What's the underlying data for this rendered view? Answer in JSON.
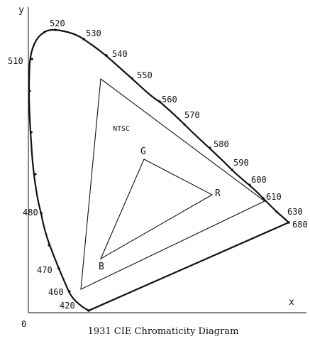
{
  "diagram": {
    "caption": "1931 CIE Chromaticity Diagram",
    "axes": {
      "x_label": "x",
      "y_label": "y",
      "origin_label": "0"
    },
    "wavelength_labels": [
      "420",
      "460",
      "470",
      "480",
      "510",
      "520",
      "530",
      "540",
      "550",
      "560",
      "570",
      "580",
      "590",
      "600",
      "610",
      "630",
      "680"
    ],
    "triangles": [
      {
        "label": "NTSC",
        "vertex_labels": []
      },
      {
        "label": "",
        "vertex_labels": [
          "G",
          "R",
          "B"
        ]
      }
    ],
    "colors": {
      "stroke": "#111111",
      "background": "#ffffff"
    }
  }
}
